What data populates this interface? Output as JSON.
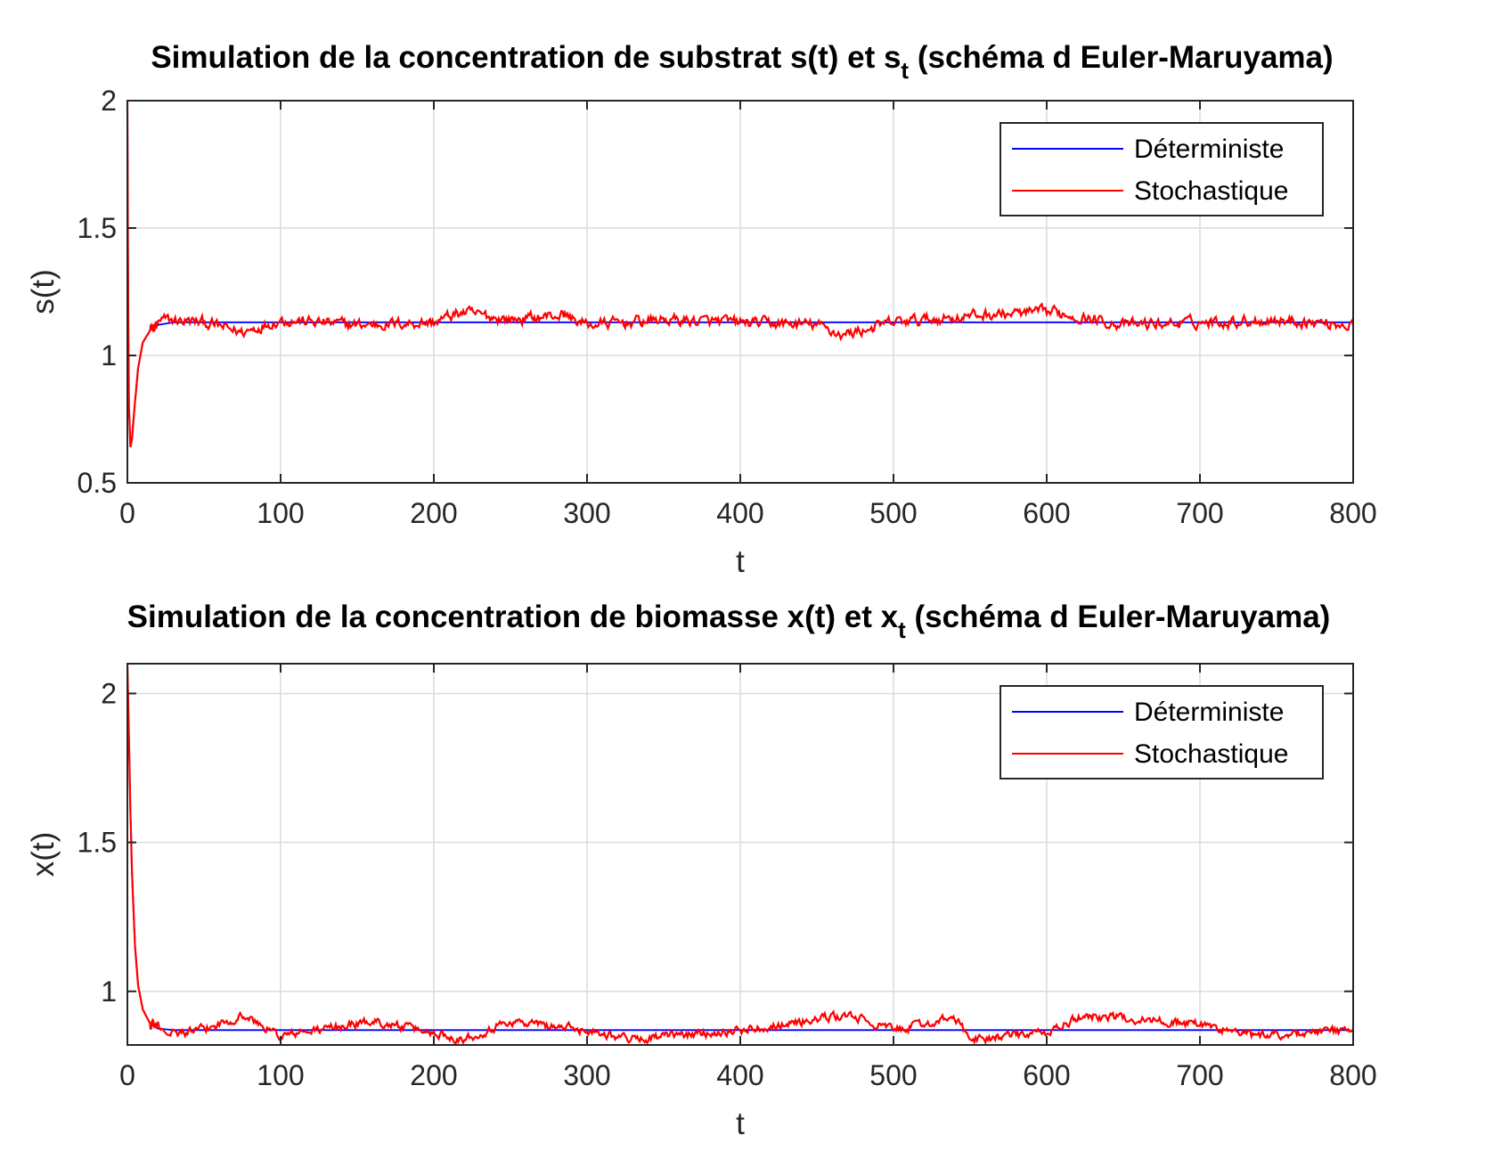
{
  "chart_data": [
    {
      "type": "line",
      "title_main": "Simulation de la concentration de substrat s(t) et s",
      "title_sub": "t",
      "title_tail": " (schéma d Euler-Maruyama)",
      "xlabel": "t",
      "ylabel": "s(t)",
      "xlim": [
        0,
        800
      ],
      "ylim": [
        0.5,
        2
      ],
      "xticks": [
        "0",
        "100",
        "200",
        "300",
        "400",
        "500",
        "600",
        "700",
        "800"
      ],
      "yticks": [
        "0.5",
        "1",
        "1.5",
        "2"
      ],
      "grid": true,
      "legend_position": "top-right",
      "series": [
        {
          "name": "Déterministe",
          "color": "#0000ff",
          "x": [
            0,
            0.5,
            1,
            2,
            3,
            5,
            7,
            10,
            15,
            20,
            30,
            50,
            100,
            200,
            400,
            800
          ],
          "values": [
            2.0,
            1.2,
            0.8,
            0.66,
            0.68,
            0.82,
            0.95,
            1.05,
            1.1,
            1.12,
            1.13,
            1.13,
            1.13,
            1.13,
            1.13,
            1.13
          ]
        },
        {
          "name": "Stochastique",
          "color": "#ff0000",
          "x": [
            0,
            0.5,
            1,
            2,
            3,
            5,
            7,
            10,
            15,
            20,
            25,
            50,
            75,
            100,
            150,
            200,
            218,
            250,
            285,
            300,
            350,
            400,
            450,
            467,
            500,
            560,
            605,
            650,
            700,
            750,
            800
          ],
          "values": [
            2.0,
            1.2,
            0.8,
            0.64,
            0.67,
            0.82,
            0.95,
            1.05,
            1.1,
            1.12,
            1.14,
            1.13,
            1.09,
            1.14,
            1.12,
            1.13,
            1.17,
            1.14,
            1.16,
            1.12,
            1.14,
            1.13,
            1.12,
            1.08,
            1.13,
            1.16,
            1.17,
            1.12,
            1.13,
            1.14,
            1.12
          ]
        }
      ]
    },
    {
      "type": "line",
      "title_main": "Simulation de la concentration de biomasse x(t) et x",
      "title_sub": "t",
      "title_tail": " (schéma d Euler-Maruyama)",
      "xlabel": "t",
      "ylabel": "x(t)",
      "xlim": [
        0,
        800
      ],
      "ylim": [
        0.82,
        2.1
      ],
      "xticks": [
        "0",
        "100",
        "200",
        "300",
        "400",
        "500",
        "600",
        "700",
        "800"
      ],
      "yticks": [
        "1",
        "1.5",
        "2"
      ],
      "grid": true,
      "legend_position": "top-right",
      "series": [
        {
          "name": "Déterministe",
          "color": "#0000ff",
          "x": [
            0,
            1,
            2,
            3,
            5,
            7,
            10,
            15,
            20,
            30,
            50,
            800
          ],
          "values": [
            2.1,
            1.85,
            1.6,
            1.4,
            1.15,
            1.02,
            0.94,
            0.89,
            0.875,
            0.87,
            0.87,
            0.87
          ]
        },
        {
          "name": "Stochastique",
          "color": "#ff0000",
          "x": [
            0,
            1,
            2,
            3,
            5,
            7,
            10,
            15,
            20,
            30,
            50,
            75,
            100,
            160,
            220,
            250,
            300,
            330,
            400,
            470,
            500,
            540,
            550,
            600,
            625,
            700,
            735,
            800
          ],
          "values": [
            2.1,
            1.85,
            1.6,
            1.4,
            1.15,
            1.02,
            0.94,
            0.89,
            0.88,
            0.86,
            0.87,
            0.92,
            0.85,
            0.9,
            0.84,
            0.9,
            0.87,
            0.84,
            0.87,
            0.92,
            0.87,
            0.91,
            0.84,
            0.86,
            0.92,
            0.89,
            0.85,
            0.87
          ]
        }
      ]
    }
  ]
}
